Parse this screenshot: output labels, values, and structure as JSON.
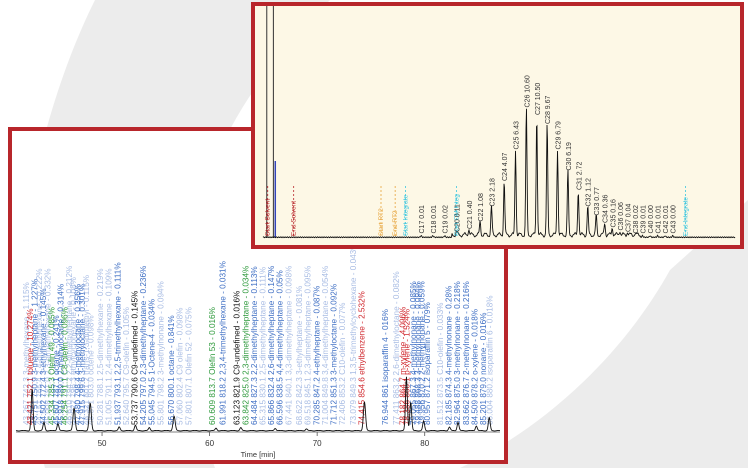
{
  "colors": {
    "frame": "#b8262b",
    "blue_label": "#3f6fc4",
    "red_label": "#d0282e",
    "green_label": "#2e9a3c",
    "black_label": "#111111",
    "pale_label": "#a9bde4",
    "trace": "#111111",
    "panel_b_bg": "#fdf8e6",
    "orange_label": "#e7a33a",
    "cyan_label": "#3cc6df",
    "dark_red_label": "#b8262b"
  },
  "chart_data": [
    {
      "type": "line",
      "xlabel": "Time [min]",
      "xlim": [
        42,
        87
      ],
      "ylim": [
        0,
        100
      ],
      "ticks": [
        "50",
        "60",
        "70",
        "80"
      ],
      "peaks": [
        {
          "x": 43.5,
          "h": 70,
          "w": 0.12
        },
        {
          "x": 44.6,
          "h": 14,
          "w": 0.12
        },
        {
          "x": 45.9,
          "h": 12,
          "w": 0.12
        },
        {
          "x": 47.4,
          "h": 38,
          "w": 0.14
        },
        {
          "x": 48.9,
          "h": 46,
          "w": 0.14
        },
        {
          "x": 51.6,
          "h": 6,
          "w": 0.12
        },
        {
          "x": 53.1,
          "h": 9,
          "w": 0.12
        },
        {
          "x": 54.4,
          "h": 5,
          "w": 0.12
        },
        {
          "x": 56.7,
          "h": 24,
          "w": 0.14
        },
        {
          "x": 60.6,
          "h": 4,
          "w": 0.12
        },
        {
          "x": 62.9,
          "h": 5,
          "w": 0.12
        },
        {
          "x": 66.1,
          "h": 4,
          "w": 0.12
        },
        {
          "x": 69.0,
          "h": 3,
          "w": 0.12
        },
        {
          "x": 74.4,
          "h": 48,
          "w": 0.14
        },
        {
          "x": 78.3,
          "h": 90,
          "w": 0.12
        },
        {
          "x": 78.7,
          "h": 48,
          "w": 0.12
        },
        {
          "x": 79.9,
          "h": 16,
          "w": 0.12
        },
        {
          "x": 82.3,
          "h": 6,
          "w": 0.12
        },
        {
          "x": 83.1,
          "h": 14,
          "w": 0.12
        },
        {
          "x": 84.8,
          "h": 8,
          "w": 0.12
        },
        {
          "x": 86.0,
          "h": 22,
          "w": 0.12
        }
      ],
      "peak_labels": [
        {
          "x": 43.2,
          "text": "43.267 742.3 3-methylhexane - 1.115%",
          "color": "pale"
        },
        {
          "x": 43.6,
          "text": "43.421 752.1 toluene - 10.274%",
          "color": "red"
        },
        {
          "x": 44.0,
          "text": "43.751 750.9 3-methylheptane - 1.227%",
          "color": "blue"
        },
        {
          "x": 44.4,
          "text": "44.151 765.4 2,4-dimethylhexane - 0.222%",
          "color": "pale"
        },
        {
          "x": 44.8,
          "text": "44.502 772.4 3-ethylhexane - 0.145%",
          "color": "blue"
        },
        {
          "x": 45.2,
          "text": "45.008 781.0 2,3-dimethylhexane - 0.332%",
          "color": "pale"
        },
        {
          "x": 45.6,
          "text": "45.334 785.3 Olefin 49 - 0.085%",
          "color": "green"
        },
        {
          "x": 46.0,
          "text": "45.607 787.1 octane - 0.241%",
          "color": "blue"
        },
        {
          "x": 46.4,
          "text": "45.918 789.0 2-methyloctane - 0.314%",
          "color": "blue"
        },
        {
          "x": 46.8,
          "text": "46.254 791.1 C8-olefin - 0.096%",
          "color": "green"
        },
        {
          "x": 47.2,
          "text": "46.610 794.2 2,2-dimethylheptane - 0.212%",
          "color": "pale"
        },
        {
          "x": 47.6,
          "text": "47.022 796.3 ethylcyclohexane - 0.108%",
          "color": "pale"
        },
        {
          "x": 48.0,
          "text": "47.480 798.4 4-methyloctane - 0.356%",
          "color": "blue"
        },
        {
          "x": 48.4,
          "text": "47.915 799.6 3-methyloctane - 0.301%",
          "color": "blue"
        },
        {
          "x": 48.8,
          "text": "48.321 801.2 trans-1,3-dimethyl - 0.115%",
          "color": "pale"
        },
        {
          "x": 49.2,
          "text": "48.871 803.0 octene - 0.098%",
          "color": "pale"
        },
        {
          "x": 50.1,
          "text": "50.281 788.1 2,5-dimethylhexane - 0.219%",
          "color": "pale"
        },
        {
          "x": 50.9,
          "text": "51.005 791.1 2,4-dimethylhexane - 0.109%",
          "color": "pale"
        },
        {
          "x": 51.7,
          "text": "51.937 793.1 2,2,5-trimethylhexane - 0.111%",
          "color": "blue"
        },
        {
          "x": 52.5,
          "text": "52.640 795.7 C9-olefin - 0.105%",
          "color": "pale"
        },
        {
          "x": 53.3,
          "text": "53.737 790.6 C9-undefined - 0.145%",
          "color": "black"
        },
        {
          "x": 54.1,
          "text": "54.205 797.0 2,3-dimethylheptane - 0.236%",
          "color": "blue"
        },
        {
          "x": 54.9,
          "text": "55.045 794.5 1-Octene-4 - 0.034%",
          "color": "blue"
        },
        {
          "x": 55.7,
          "text": "55.801 798.2 3-methylnonane - 0.094%",
          "color": "pale"
        },
        {
          "x": 56.7,
          "text": "56.670 800.1 octane - 0.841%",
          "color": "blue"
        },
        {
          "x": 57.5,
          "text": "57.060 802.4 C9 olefin - 0.098%",
          "color": "pale"
        },
        {
          "x": 58.3,
          "text": "57.801 807.1 Olefin 52 - 0.075%",
          "color": "pale"
        },
        {
          "x": 60.5,
          "text": "60.609 813.7 Olefin 53 - 0.016%",
          "color": "green"
        },
        {
          "x": 61.5,
          "text": "61.991 818.2 2,3,4-trimethylhexane - 0.031%",
          "color": "blue"
        },
        {
          "x": 62.8,
          "text": "63.123 821.9 C9-undefined - 0.016%",
          "color": "black"
        },
        {
          "x": 63.6,
          "text": "63.842 825.0 2,3-dimethylheptane - 0.034%",
          "color": "green"
        },
        {
          "x": 64.4,
          "text": "64.484 827.3 2,2-dimethylheptane - 0.113%",
          "color": "blue"
        },
        {
          "x": 65.2,
          "text": "65.315 830.1 2,5-dimethylheptane - 0.111%",
          "color": "pale"
        },
        {
          "x": 66.0,
          "text": "65.866 832.4 2,6-dimethylheptane - 0.147%",
          "color": "blue"
        },
        {
          "x": 66.8,
          "text": "66.596 838.5 4,4-dimethylheptane - 0.05%",
          "color": "blue"
        },
        {
          "x": 67.6,
          "text": "67.441 840.1 3,3-dimethylheptane - 0.098%",
          "color": "pale"
        },
        {
          "x": 68.6,
          "text": "68.622 842.3 3-ethylheptane - 0.081%",
          "color": "pale"
        },
        {
          "x": 69.4,
          "text": "69.518 845.1 2,3-dimethylheptane - 0.095%",
          "color": "pale"
        },
        {
          "x": 70.2,
          "text": "70.285 847.2 4-ethylheptane - 0.087%",
          "color": "blue"
        },
        {
          "x": 71.0,
          "text": "71.004 849.8 3,4-dimethylheptane - 0.054%",
          "color": "pale"
        },
        {
          "x": 71.8,
          "text": "71.712 851.3 3-methyloctane - 0.092%",
          "color": "blue"
        },
        {
          "x": 72.6,
          "text": "72.406 853.2 C10-olefin - 0.077%",
          "color": "pale"
        },
        {
          "x": 73.6,
          "text": "73.079 849.3 1,3,5-trimethylcyclohexane - 0.043%",
          "color": "pale"
        },
        {
          "x": 74.4,
          "text": "74.415 854.6 ethylbenzene - 2.532%",
          "color": "red"
        },
        {
          "x": 76.6,
          "text": "76.944 861 isoparaffin 4 - 016%",
          "color": "blue"
        },
        {
          "x": 77.6,
          "text": "77.411 863.2 2,6-dimethyloctane - 0.082%",
          "color": "pale"
        },
        {
          "x": 78.2,
          "text": "78.182 864.7 m-xylene - 4.096%",
          "color": "red"
        },
        {
          "x": 78.6,
          "text": "78.386 866.1 p-xylene - 1.524%",
          "color": "red"
        },
        {
          "x": 79.2,
          "text": "79.055 867.3 4-methylnonane - 0.085%",
          "color": "blue"
        },
        {
          "x": 79.6,
          "text": "79.488 868.3 3-methylnonane - 0.094%",
          "color": "blue"
        },
        {
          "x": 80.0,
          "text": "79.956 870.2 2-methylnonane - 0.059%",
          "color": "blue"
        },
        {
          "x": 80.5,
          "text": "80.957 871.2 isoparaffin 5 - 079%",
          "color": "blue"
        },
        {
          "x": 81.7,
          "text": "81.512 873.5 C10-olefin - 0.033%",
          "color": "pale"
        },
        {
          "x": 82.5,
          "text": "82.185 874.3 4-methylnonane - 0.28%",
          "color": "blue"
        },
        {
          "x": 83.3,
          "text": "82.964 875.0 3-methylnonane - 0.218%",
          "color": "blue"
        },
        {
          "x": 84.1,
          "text": "83.662 876.7 2-methylnonane - 0.216%",
          "color": "blue"
        },
        {
          "x": 84.9,
          "text": "84.509 878.2 o-xylene - 0.018%",
          "color": "blue"
        },
        {
          "x": 85.7,
          "text": "85.201 879.0 nonane - 0.016%",
          "color": "blue"
        },
        {
          "x": 86.3,
          "text": "86.004 880.2 isoparaffin 6 - 0.018%",
          "color": "pale"
        }
      ]
    },
    {
      "type": "line",
      "xlim": [
        0,
        100
      ],
      "ylim": [
        0,
        100
      ],
      "markers": [
        {
          "x": 1.0,
          "text": "Start Solvent",
          "color": "dark_red"
        },
        {
          "x": 6.5,
          "text": "End Solvent",
          "color": "dark_red"
        },
        {
          "x": 25.0,
          "text": "Start RT2",
          "color": "orange"
        },
        {
          "x": 28.0,
          "text": "End RT2",
          "color": "orange"
        },
        {
          "x": 30.2,
          "text": "Start Integrate",
          "color": "cyan"
        },
        {
          "x": 41.0,
          "text": "Start CM Integ",
          "color": "cyan"
        },
        {
          "x": 89.5,
          "text": "End Integrate",
          "color": "cyan"
        }
      ],
      "carbon_labels": [
        {
          "x": 33.5,
          "text": "C17 0.01",
          "h": 1
        },
        {
          "x": 36.0,
          "text": "C18 0.01",
          "h": 1
        },
        {
          "x": 38.5,
          "text": "C19 0.02",
          "h": 1
        },
        {
          "x": 41.0,
          "text": "C20 0.11",
          "h": 2
        },
        {
          "x": 43.6,
          "text": "C21 0.40",
          "h": 4
        },
        {
          "x": 46.0,
          "text": "C22 1.08",
          "h": 9
        },
        {
          "x": 48.4,
          "text": "C23 2.18",
          "h": 19
        },
        {
          "x": 51.1,
          "text": "C24 4.07",
          "h": 36
        },
        {
          "x": 53.5,
          "text": "C25 6.43",
          "h": 57
        },
        {
          "x": 55.8,
          "text": "C26 10.60",
          "h": 85
        },
        {
          "x": 58.0,
          "text": "C27 10.50",
          "h": 80
        },
        {
          "x": 60.2,
          "text": "C28 9.67",
          "h": 74
        },
        {
          "x": 62.4,
          "text": "C29 6.79",
          "h": 57
        },
        {
          "x": 64.6,
          "text": "C30 6.19",
          "h": 43
        },
        {
          "x": 66.8,
          "text": "C31 2.72",
          "h": 30
        },
        {
          "x": 68.8,
          "text": "C32 1.12",
          "h": 19
        },
        {
          "x": 70.6,
          "text": "C33 0.77",
          "h": 13
        },
        {
          "x": 72.4,
          "text": "C34 0.36",
          "h": 8
        },
        {
          "x": 74.0,
          "text": "C35 0.16",
          "h": 5
        },
        {
          "x": 75.6,
          "text": "C36 0.06",
          "h": 3
        },
        {
          "x": 77.2,
          "text": "C37 0.04",
          "h": 2
        },
        {
          "x": 78.8,
          "text": "C38 0.02",
          "h": 1
        },
        {
          "x": 80.4,
          "text": "C39 0.01",
          "h": 1
        },
        {
          "x": 82.0,
          "text": "C40 0.00",
          "h": 1
        },
        {
          "x": 83.6,
          "text": "C41 0.01",
          "h": 1
        },
        {
          "x": 85.2,
          "text": "C42 0.01",
          "h": 1
        },
        {
          "x": 86.8,
          "text": "C43 0.00",
          "h": 1
        }
      ]
    }
  ]
}
